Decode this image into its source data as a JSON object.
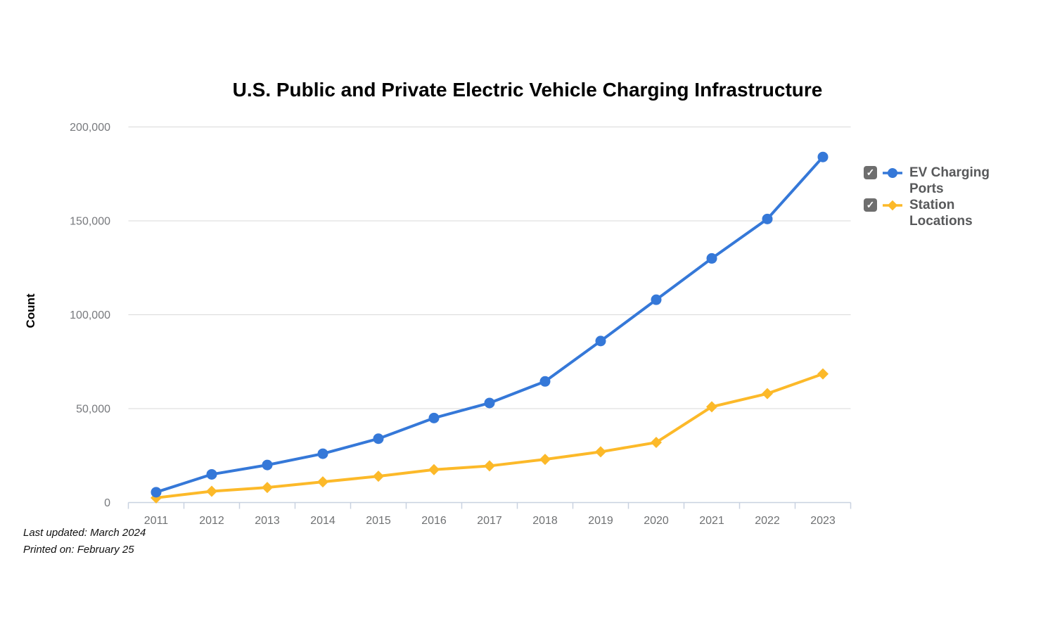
{
  "chart_data": {
    "type": "line",
    "title": "U.S. Public and Private Electric Vehicle Charging Infrastructure",
    "xlabel": "",
    "ylabel": "Count",
    "categories": [
      "2011",
      "2012",
      "2013",
      "2014",
      "2015",
      "2016",
      "2017",
      "2018",
      "2019",
      "2020",
      "2021",
      "2022",
      "2023"
    ],
    "series": [
      {
        "name": "EV Charging Ports",
        "marker": "circle",
        "color": "#3578d8",
        "checked": true,
        "values": [
          5500,
          15000,
          20000,
          26000,
          34000,
          45000,
          53000,
          64500,
          86000,
          108000,
          130000,
          151000,
          184000
        ]
      },
      {
        "name": "Station Locations",
        "marker": "diamond",
        "color": "#fcb929",
        "checked": true,
        "values": [
          2500,
          6000,
          8000,
          11000,
          14000,
          17500,
          19500,
          23000,
          27000,
          32000,
          51000,
          58000,
          68500
        ]
      }
    ],
    "ylim": [
      0,
      200000
    ],
    "yticks": [
      0,
      50000,
      100000,
      150000,
      200000
    ],
    "ytick_labels": [
      "0",
      "50,000",
      "100,000",
      "150,000",
      "200,000"
    ],
    "grid": true,
    "legend_position": "right"
  },
  "icons": {
    "checkbox_checkmark": "✓"
  },
  "footer": {
    "last_updated": "Last updated: March 2024",
    "printed_on": "Printed on: February 25"
  },
  "colors": {
    "grid": "#d9d9d9",
    "axis": "#c8d2e0",
    "ytick_label": "#77797d",
    "xtick_label": "#6f7173",
    "legend_text": "#58595b",
    "checkbox_bg": "#6e6e6e",
    "title": "#000000",
    "footer_text": "#111111"
  }
}
